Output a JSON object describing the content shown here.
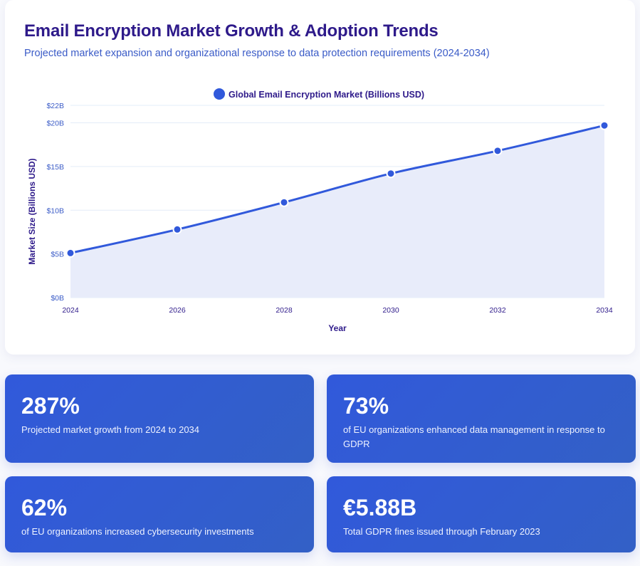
{
  "header": {
    "title": "Email Encryption Market Growth & Adoption Trends",
    "subtitle": "Projected market expansion and organizational response to data protection requirements (2024-2034)"
  },
  "chart_data": {
    "type": "area",
    "title": "",
    "legend": {
      "label": "Global Email Encryption Market (Billions USD)",
      "position": "top-center"
    },
    "xlabel": "Year",
    "ylabel": "Market Size (Billions USD)",
    "x": [
      "2024",
      "2026",
      "2028",
      "2030",
      "2032",
      "2034"
    ],
    "series": [
      {
        "name": "Global Email Encryption Market (Billions USD)",
        "values": [
          5.1,
          7.8,
          10.9,
          14.2,
          16.8,
          19.7
        ],
        "color": "#3159db",
        "fill": "#e8ecfa"
      }
    ],
    "yticks": [
      {
        "value": 0,
        "label": "$0B"
      },
      {
        "value": 5,
        "label": "$5B"
      },
      {
        "value": 10,
        "label": "$10B"
      },
      {
        "value": 15,
        "label": "$15B"
      },
      {
        "value": 20,
        "label": "$20B"
      },
      {
        "value": 22,
        "label": "$22B"
      }
    ],
    "ylim": [
      0,
      22
    ],
    "grid": true
  },
  "stats": [
    {
      "value": "287%",
      "label": "Projected market growth from 2024 to 2034"
    },
    {
      "value": "73%",
      "label": "of EU organizations enhanced data management in response to GDPR"
    },
    {
      "value": "62%",
      "label": "of EU organizations increased cybersecurity investments"
    },
    {
      "value": "€5.88B",
      "label": "Total GDPR fines issued through February 2023"
    }
  ]
}
